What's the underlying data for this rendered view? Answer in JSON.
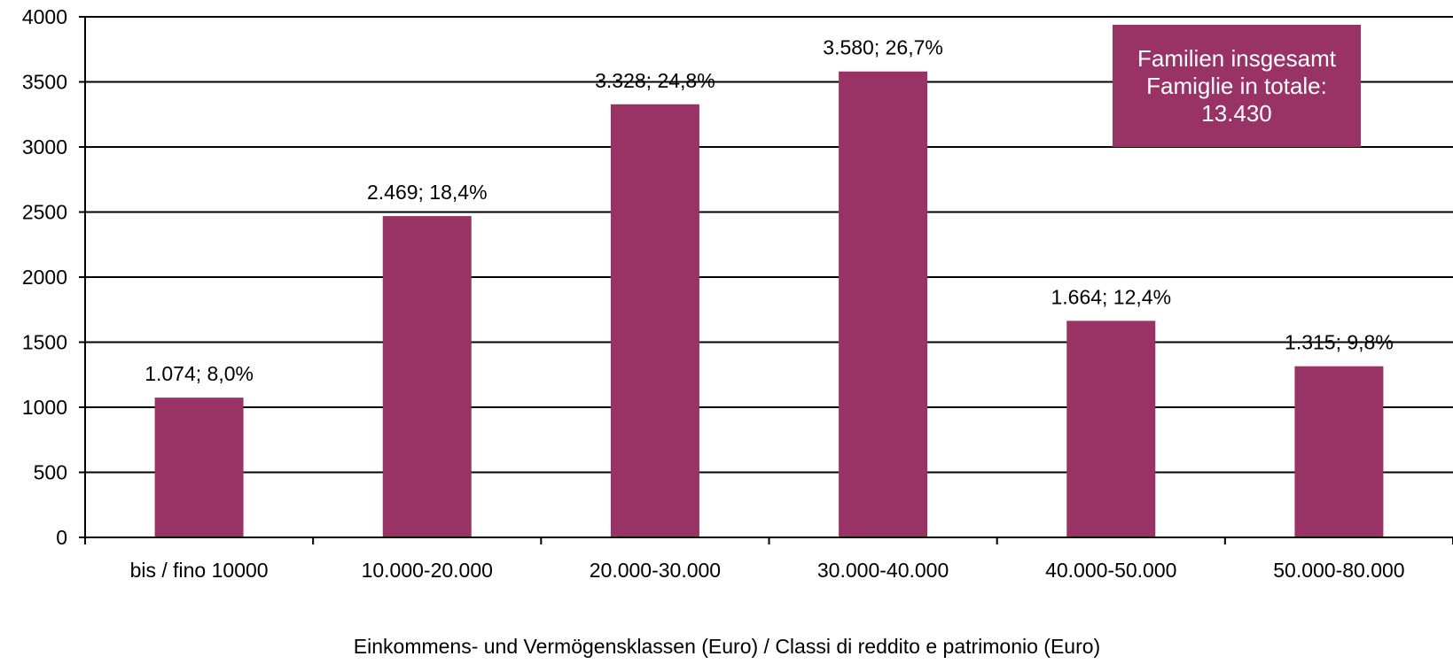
{
  "chart_data": {
    "type": "bar",
    "categories": [
      "bis / fino 10000",
      "10.000-20.000",
      "20.000-30.000",
      "30.000-40.000",
      "40.000-50.000",
      "50.000-80.000"
    ],
    "values": [
      1074,
      2469,
      3328,
      3580,
      1664,
      1315
    ],
    "data_labels": [
      "1.074; 8,0%",
      "2.469; 18,4%",
      "3.328; 24,8%",
      "3.580; 26,7%",
      "1.664; 12,4%",
      "1.315; 9,8%"
    ],
    "y_ticks": [
      "0",
      "500",
      "1000",
      "1500",
      "2000",
      "2500",
      "3000",
      "3500",
      "4000"
    ],
    "ylim": [
      0,
      4000
    ],
    "xlabel": "Einkommens-  und Vermögensklassen (Euro) / Classi di reddito e patrimonio (Euro)",
    "ylabel": "",
    "title": "",
    "grid": true,
    "bar_color": "#993366",
    "total_box": {
      "line1": "Familien insgesamt",
      "line2": "Famiglie in totale:",
      "line3": "13.430",
      "color": "#993366"
    }
  }
}
